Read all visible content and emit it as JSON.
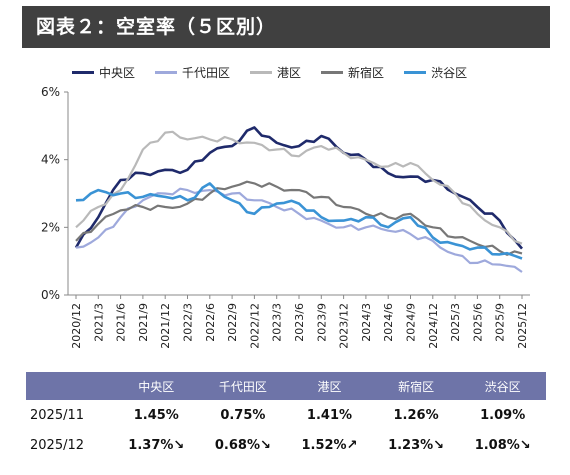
{
  "header": {
    "title": "図表２：空室率（５区別）"
  },
  "chart_data": {
    "type": "line",
    "title": "図表２：空室率（５区別）",
    "ylabel": "",
    "xlabel": "",
    "ylim": [
      0,
      6
    ],
    "yticks": [
      "0%",
      "2%",
      "4%",
      "6%"
    ],
    "grid": false,
    "legend_position": "top",
    "x_labels": [
      "2020/12",
      "2021/3",
      "2021/6",
      "2021/9",
      "2021/12",
      "2022/3",
      "2022/6",
      "2022/9",
      "2022/12",
      "2023/3",
      "2023/6",
      "2023/9",
      "2023/12",
      "2024/3",
      "2024/6",
      "2024/9",
      "2024/12",
      "2025/3",
      "2025/6",
      "2025/9",
      "2025/12"
    ],
    "series": [
      {
        "name": "中央区",
        "color": "#1f2a6b",
        "width": 2.6,
        "anchors": [
          1.4,
          2.3,
          3.4,
          3.6,
          3.7,
          3.7,
          4.2,
          4.4,
          4.95,
          4.5,
          4.4,
          4.7,
          4.2,
          4.0,
          3.6,
          3.5,
          3.4,
          3.0,
          2.6,
          2.2,
          1.37
        ]
      },
      {
        "name": "千代田区",
        "color": "#9ea9dc",
        "width": 2.2,
        "anchors": [
          1.4,
          1.7,
          2.3,
          2.8,
          3.0,
          3.1,
          3.1,
          3.0,
          2.8,
          2.6,
          2.4,
          2.2,
          2.0,
          2.0,
          1.9,
          1.8,
          1.6,
          1.2,
          0.95,
          0.9,
          0.68
        ]
      },
      {
        "name": "港区",
        "color": "#b9b9b9",
        "width": 2.2,
        "anchors": [
          2.0,
          2.6,
          3.1,
          4.3,
          4.8,
          4.6,
          4.6,
          4.6,
          4.5,
          4.3,
          4.1,
          4.4,
          4.2,
          4.0,
          3.8,
          3.9,
          3.4,
          3.0,
          2.4,
          2.0,
          1.52
        ]
      },
      {
        "name": "新宿区",
        "color": "#777777",
        "width": 2.2,
        "anchors": [
          1.6,
          2.1,
          2.5,
          2.6,
          2.6,
          2.7,
          3.0,
          3.2,
          3.3,
          3.2,
          3.1,
          2.9,
          2.6,
          2.4,
          2.3,
          2.4,
          2.0,
          1.7,
          1.5,
          1.3,
          1.23
        ]
      },
      {
        "name": "渋谷区",
        "color": "#3a93d5",
        "width": 2.6,
        "anchors": [
          2.8,
          3.1,
          3.0,
          2.9,
          2.9,
          2.8,
          3.3,
          2.8,
          2.4,
          2.7,
          2.7,
          2.3,
          2.2,
          2.3,
          2.0,
          2.3,
          1.7,
          1.5,
          1.4,
          1.2,
          1.08
        ]
      }
    ]
  },
  "table": {
    "headers": [
      "",
      "中央区",
      "千代田区",
      "港区",
      "新宿区",
      "渋谷区"
    ],
    "rows": [
      {
        "date": "2025/11",
        "values": [
          "1.45%",
          "0.75%",
          "1.41%",
          "1.26%",
          "1.09%"
        ]
      },
      {
        "date": "2025/12",
        "values": [
          "1.37%↘",
          "0.68%↘",
          "1.52%↗",
          "1.23%↘",
          "1.08%↘"
        ],
        "colors": [
          "#e0201c",
          "#e0201c",
          "#2e8fd6",
          "#e0201c",
          "#e0201c"
        ]
      }
    ]
  }
}
